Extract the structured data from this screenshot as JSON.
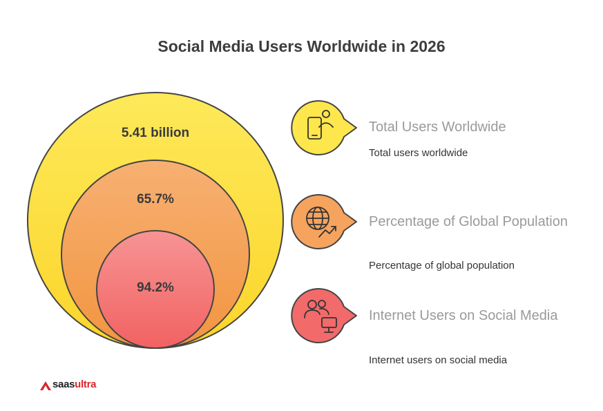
{
  "title": "Social Media Users Worldwide in 2026",
  "circles": [
    {
      "value": "5.41 billion",
      "color": "#fde74c"
    },
    {
      "value": "65.7%",
      "color": "#f6a35e"
    },
    {
      "value": "94.2%",
      "color": "#f26a6a"
    }
  ],
  "legend": [
    {
      "title": "Total Users Worldwide",
      "description": "Total users worldwide",
      "icon": "mobile-user-icon",
      "color": "#fde74c"
    },
    {
      "title": "Percentage of Global Population",
      "description": "Percentage of global population",
      "icon": "globe-trend-icon",
      "color": "#f6a35e"
    },
    {
      "title": "Internet Users on Social Media",
      "description": "Internet users on social media",
      "icon": "users-monitor-icon",
      "color": "#f26a6a"
    }
  ],
  "logo": {
    "text_main": "saas",
    "text_accent": "ultra"
  }
}
